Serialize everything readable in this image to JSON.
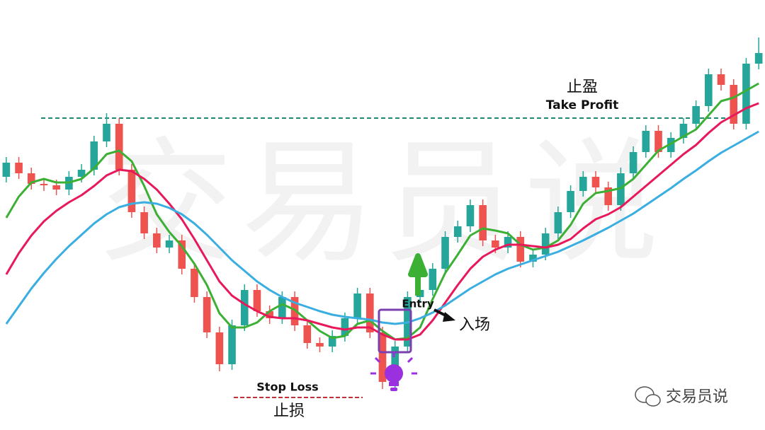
{
  "chart_data": {
    "type": "candlestick",
    "categories": [
      null,
      null,
      null,
      null,
      null,
      null,
      null,
      null,
      null,
      null,
      null,
      null,
      null,
      null,
      null,
      null,
      null,
      null,
      null,
      null,
      null,
      null,
      null,
      null,
      null,
      null,
      null,
      null,
      null,
      null,
      null,
      null,
      null,
      null,
      null,
      null,
      null,
      null,
      null,
      null,
      null,
      null,
      null,
      null,
      null,
      null,
      null,
      null,
      null,
      null,
      null,
      null,
      null,
      null,
      null,
      null,
      null,
      null,
      null,
      null,
      null
    ],
    "open": [
      358,
      378,
      363,
      348,
      346,
      340,
      358,
      368,
      408,
      433,
      368,
      308,
      278,
      258,
      268,
      228,
      188,
      138,
      93,
      148,
      198,
      168,
      158,
      188,
      148,
      123,
      118,
      133,
      158,
      193,
      138,
      68,
      118,
      188,
      198,
      228,
      273,
      288,
      318,
      268,
      258,
      273,
      238,
      248,
      278,
      308,
      338,
      358,
      343,
      318,
      363,
      393,
      423,
      393,
      413,
      433,
      458,
      503,
      488,
      433,
      518
    ],
    "close": [
      378,
      363,
      348,
      346,
      340,
      358,
      368,
      408,
      433,
      368,
      308,
      278,
      258,
      268,
      228,
      188,
      138,
      93,
      148,
      198,
      168,
      158,
      188,
      148,
      123,
      118,
      133,
      158,
      193,
      138,
      68,
      118,
      188,
      198,
      228,
      273,
      288,
      318,
      268,
      258,
      273,
      238,
      248,
      278,
      308,
      338,
      358,
      343,
      318,
      363,
      393,
      423,
      393,
      413,
      433,
      458,
      503,
      488,
      433,
      518,
      533
    ],
    "high": [
      386,
      386,
      371,
      356,
      354,
      366,
      376,
      416,
      448,
      441,
      376,
      316,
      286,
      276,
      276,
      236,
      196,
      146,
      156,
      206,
      206,
      176,
      196,
      196,
      156,
      131,
      141,
      166,
      201,
      201,
      146,
      126,
      196,
      206,
      236,
      281,
      296,
      326,
      326,
      276,
      281,
      281,
      256,
      286,
      316,
      346,
      366,
      366,
      351,
      371,
      401,
      431,
      431,
      421,
      441,
      466,
      511,
      511,
      496,
      526,
      555
    ],
    "low": [
      350,
      355,
      340,
      338,
      332,
      332,
      350,
      360,
      400,
      360,
      300,
      270,
      250,
      250,
      220,
      180,
      130,
      83,
      85,
      140,
      160,
      150,
      150,
      140,
      115,
      110,
      110,
      125,
      150,
      130,
      58,
      60,
      110,
      180,
      190,
      220,
      265,
      280,
      260,
      250,
      250,
      230,
      230,
      240,
      270,
      300,
      330,
      335,
      310,
      310,
      355,
      385,
      385,
      385,
      405,
      425,
      450,
      480,
      425,
      425,
      510
    ],
    "up_color": "#26a69a",
    "down_color": "#ef5350",
    "lines": [
      {
        "color": "#3cb034",
        "values": [
          300,
          330,
          350,
          355,
          350,
          350,
          355,
          370,
          390,
          395,
          380,
          345,
          305,
          280,
          260,
          235,
          205,
          165,
          145,
          145,
          152,
          168,
          178,
          170,
          155,
          140,
          130,
          133,
          150,
          155,
          140,
          128,
          130,
          145,
          185,
          222,
          248,
          275,
          285,
          282,
          278,
          262,
          255,
          258,
          268,
          290,
          320,
          335,
          338,
          342,
          355,
          375,
          395,
          405,
          415,
          425,
          445,
          465,
          470,
          480,
          490
        ]
      },
      {
        "color": "#e8195a",
        "values": [
          220,
          250,
          275,
          295,
          310,
          322,
          332,
          345,
          360,
          368,
          366,
          355,
          340,
          320,
          298,
          270,
          240,
          210,
          190,
          178,
          168,
          160,
          158,
          158,
          155,
          150,
          145,
          142,
          145,
          145,
          135,
          128,
          128,
          135,
          155,
          180,
          205,
          228,
          245,
          255,
          262,
          262,
          260,
          258,
          262,
          270,
          285,
          298,
          305,
          315,
          330,
          345,
          360,
          375,
          390,
          403,
          420,
          435,
          445,
          455,
          462
        ]
      },
      {
        "color": "#3aaee0",
        "values": [
          150,
          175,
          200,
          222,
          242,
          260,
          276,
          292,
          305,
          315,
          320,
          322,
          320,
          314,
          305,
          292,
          276,
          258,
          240,
          225,
          210,
          198,
          188,
          180,
          174,
          168,
          163,
          160,
          158,
          156,
          152,
          150,
          152,
          158,
          166,
          176,
          188,
          200,
          210,
          220,
          228,
          234,
          240,
          246,
          252,
          260,
          268,
          277,
          286,
          296,
          306,
          318,
          330,
          342,
          355,
          367,
          380,
          392,
          402,
          412,
          422
        ]
      }
    ],
    "ylim": [
      0,
      608
    ],
    "take_profit": {
      "level": 441,
      "label": "Take Profit",
      "label_cn": "止盈"
    },
    "stop_loss": {
      "level": 46,
      "label": "Stop Loss",
      "label_cn": "止损"
    },
    "entry": {
      "label": "Entry",
      "label_cn": "入场"
    },
    "watermark": "交易员说"
  }
}
